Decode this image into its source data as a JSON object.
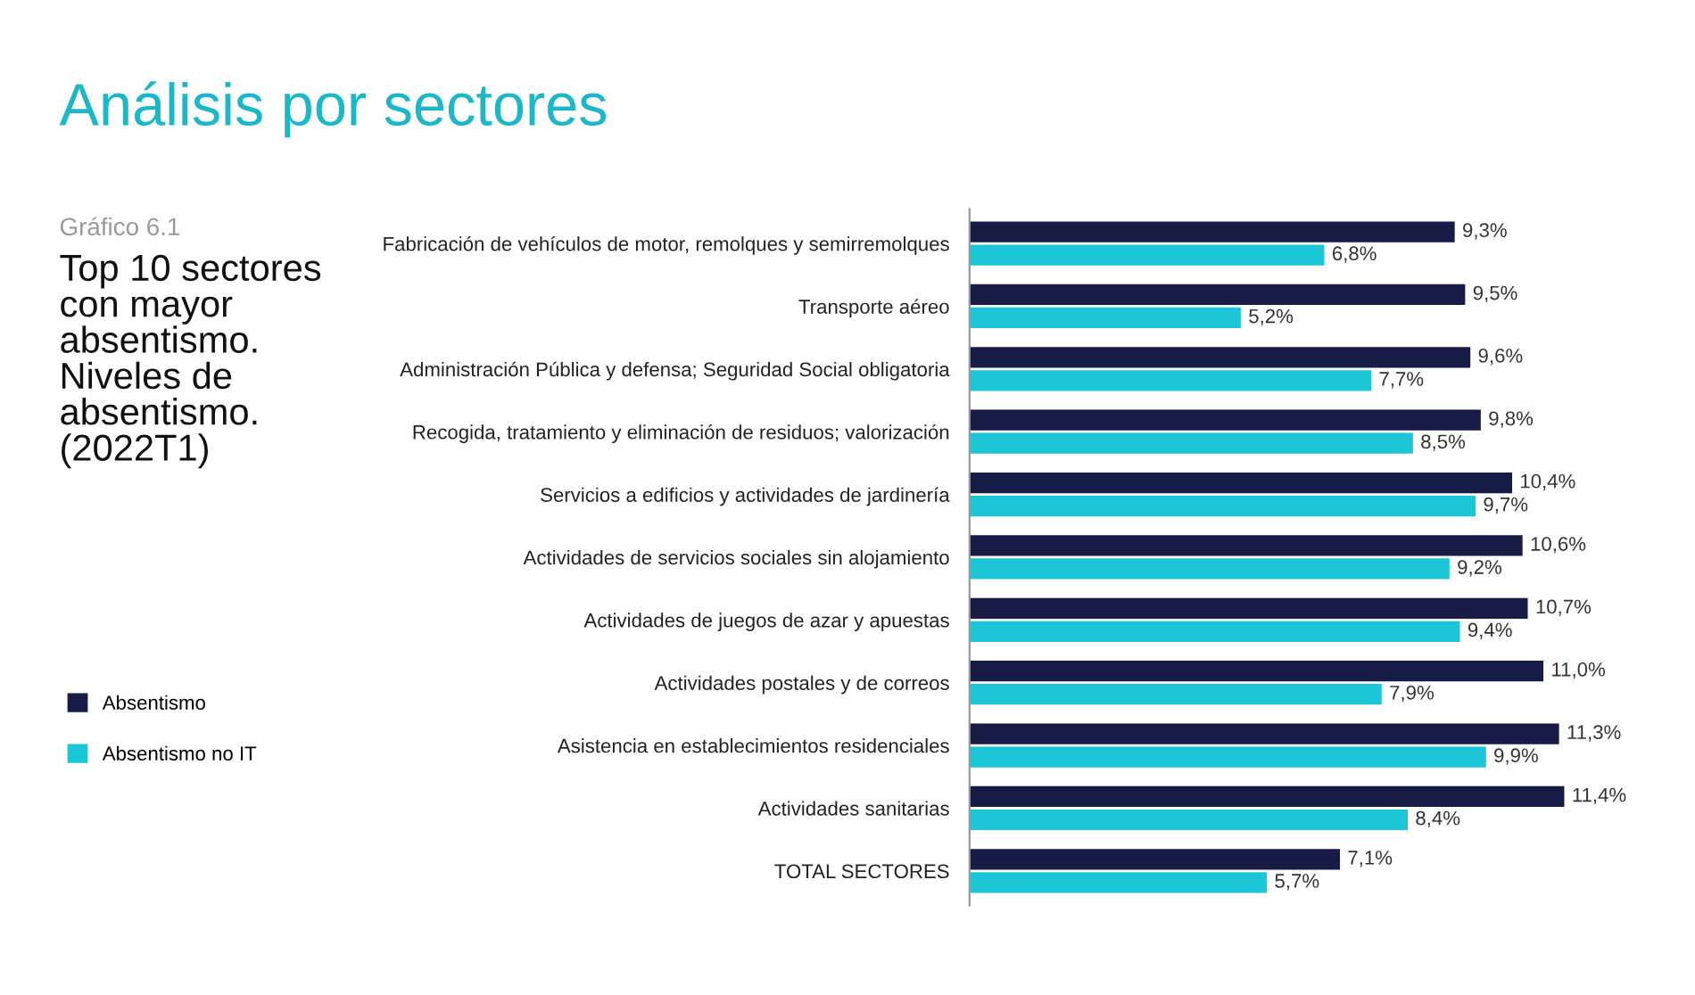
{
  "chart_data": {
    "type": "bar",
    "orientation": "horizontal",
    "title": "Análisis por sectores",
    "subtitle": "Gráfico 6.1",
    "annotations": [
      "Top 10 sectores\ncon mayor\nabsentismo.\nNiveles de\nabsentismo.\n(2022T1)"
    ],
    "categories": [
      "Fabricación de vehículos de motor, remolques y semirremolques",
      "Transporte aéreo",
      "Administración Pública y defensa; Seguridad Social obligatoria",
      "Recogida, tratamiento y eliminación de residuos; valorización",
      "Servicios a edificios y actividades de jardinería",
      "Actividades de servicios sociales sin alojamiento",
      "Actividades de juegos de azar y apuestas",
      "Actividades postales y de correos",
      "Asistencia en establecimientos residenciales",
      "Actividades sanitarias",
      "TOTAL SECTORES"
    ],
    "series": [
      {
        "name": "Absentismo",
        "color": "#171c47",
        "values": [
          9.3,
          9.5,
          9.6,
          9.8,
          10.4,
          10.6,
          10.7,
          11.0,
          11.3,
          11.4,
          7.1
        ],
        "value_labels": [
          "9,3%",
          "9,5%",
          "9,6%",
          "9,8%",
          "10,4%",
          "10,6%",
          "10,7%",
          "11,0%",
          "11,3%",
          "11,4%",
          "7,1%"
        ]
      },
      {
        "name": "Absentismo no IT",
        "color": "#1cc6d6",
        "values": [
          6.8,
          5.2,
          7.7,
          8.5,
          9.7,
          9.2,
          9.4,
          7.9,
          9.9,
          8.4,
          5.7
        ],
        "value_labels": [
          "6,8%",
          "5,2%",
          "7,7%",
          "8,5%",
          "9,7%",
          "9,2%",
          "9,4%",
          "7,9%",
          "9,9%",
          "8,4%",
          "5,7%"
        ]
      }
    ],
    "tick_labels": "y",
    "grid": false,
    "legend": "left"
  }
}
